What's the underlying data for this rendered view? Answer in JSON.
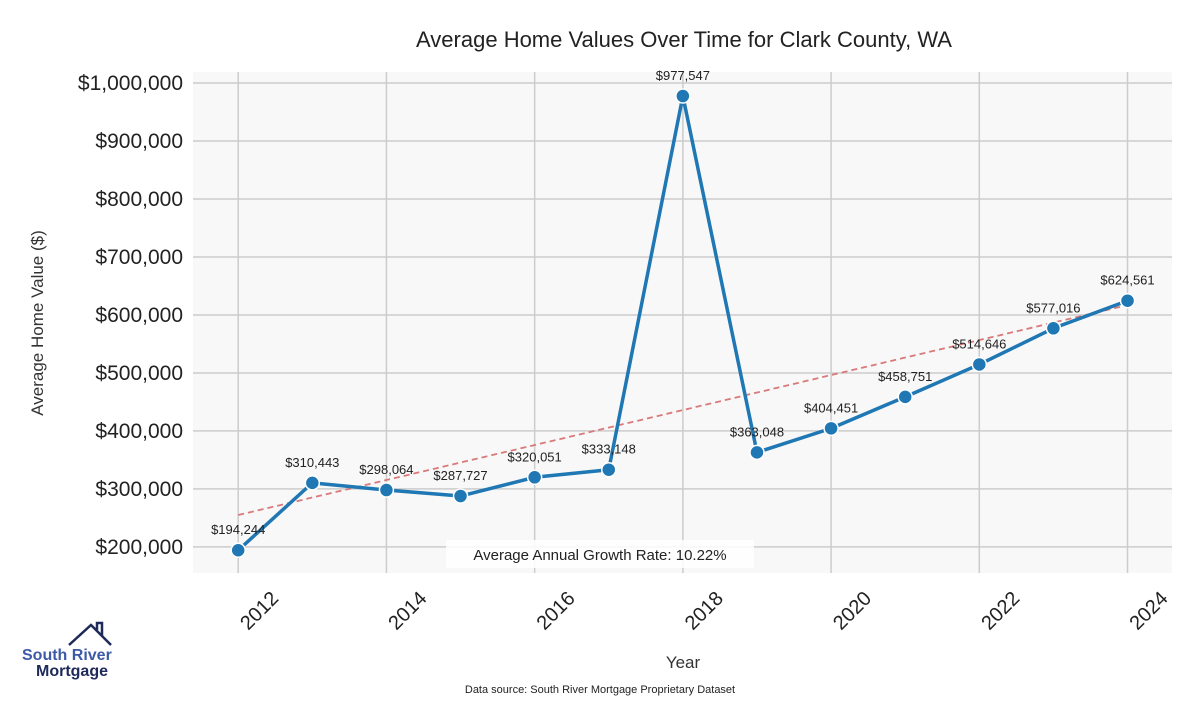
{
  "chart_data": {
    "type": "line",
    "title": "Average Home Values Over Time for Clark County, WA",
    "xlabel": "Year",
    "ylabel": "Average Home Value ($)",
    "x": [
      2012,
      2013,
      2014,
      2015,
      2016,
      2017,
      2018,
      2019,
      2020,
      2021,
      2022,
      2023,
      2024
    ],
    "values": [
      194244,
      310443,
      298064,
      287727,
      320051,
      333148,
      977547,
      363048,
      404451,
      458751,
      514646,
      577016,
      624561
    ],
    "data_labels": [
      "$194,244",
      "$310,443",
      "$298,064",
      "$287,727",
      "$320,051",
      "$333,148",
      "$977,547",
      "$363,048",
      "$404,451",
      "$458,751",
      "$514,646",
      "$577,016",
      "$624,561"
    ],
    "xticks": [
      2012,
      2014,
      2016,
      2018,
      2020,
      2022,
      2024
    ],
    "yticks": [
      200000,
      300000,
      400000,
      500000,
      600000,
      700000,
      800000,
      900000,
      1000000
    ],
    "ytick_labels": [
      "$200,000",
      "$300,000",
      "$400,000",
      "$500,000",
      "$600,000",
      "$700,000",
      "$800,000",
      "$900,000",
      "$1,000,000"
    ],
    "xlim": [
      2011.39,
      2024.6
    ],
    "ylim": [
      155000,
      1019000
    ],
    "trend": {
      "x": [
        2012,
        2024
      ],
      "y": [
        255000,
        617000
      ]
    },
    "annotation": "Average Annual Growth Rate: 10.22%",
    "grid": true,
    "colors": {
      "line": "#1f77b4",
      "trend": "#d9797a",
      "grid": "#cccccc",
      "plot_bg": "#f8f8f8"
    }
  },
  "logo": {
    "line1": "South River",
    "line2": "Mortgage"
  },
  "source": "Data source: South River Mortgage Proprietary Dataset"
}
